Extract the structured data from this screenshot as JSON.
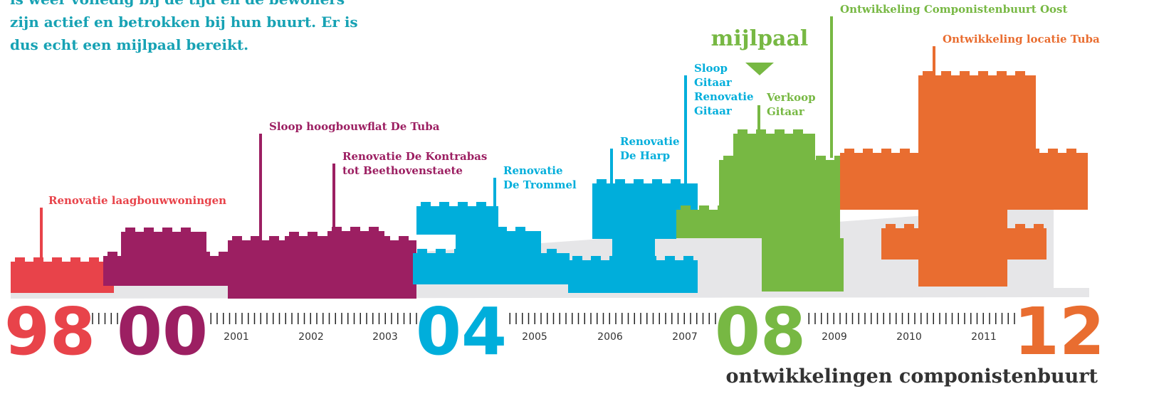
{
  "intro": {
    "lines": [
      "is weer volledig bij de tijd en de bewoners",
      "zijn actief en betrokken bij hun buurt. Er is",
      "dus echt een mijlpaal bereikt."
    ]
  },
  "milestone": "mijlpaal",
  "events": [
    {
      "lines": [
        "Renovatie laagbouwwoningen"
      ]
    },
    {
      "lines": [
        "Sloop hoogbouwflat De Tuba"
      ]
    },
    {
      "lines": [
        "Renovatie De Kontrabas",
        "tot Beethovenstaete"
      ]
    },
    {
      "lines": [
        "Renovatie",
        "De Trommel"
      ]
    },
    {
      "lines": [
        "Renovatie",
        "De Harp"
      ]
    },
    {
      "lines": [
        "Sloop",
        "Gitaar",
        "Renovatie",
        "Gitaar"
      ]
    },
    {
      "lines": [
        "Verkoop",
        "Gitaar"
      ]
    },
    {
      "lines": [
        "Ontwikkeling Componistenbuurt Oost"
      ]
    },
    {
      "lines": [
        "Ontwikkeling locatie Tuba"
      ]
    }
  ],
  "big_years": [
    "98",
    "00",
    "04",
    "08",
    "12"
  ],
  "small_years": [
    "2001",
    "2002",
    "2003",
    "2005",
    "2006",
    "2007",
    "2009",
    "2010",
    "2011"
  ],
  "footer_title": "ontwikkelingen componistenbuurt"
}
